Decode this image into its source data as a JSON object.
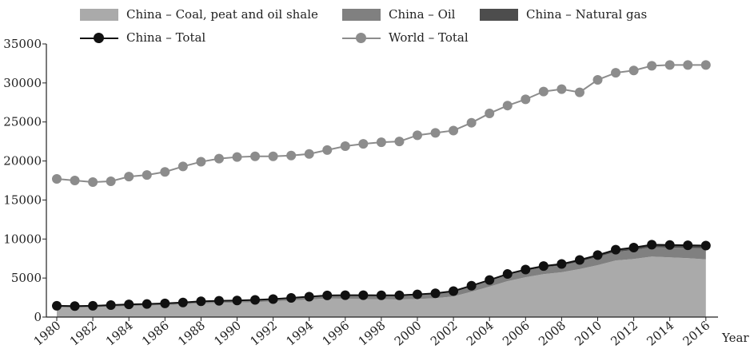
{
  "chart_data": {
    "type": "line+stacked-area",
    "xlabel": "Year",
    "ylabel": "",
    "ylim": [
      0,
      35000
    ],
    "yticks": [
      0,
      5000,
      10000,
      15000,
      20000,
      25000,
      30000,
      35000
    ],
    "xticks": [
      1980,
      1982,
      1984,
      1986,
      1988,
      1990,
      1992,
      1994,
      1996,
      1998,
      2000,
      2002,
      2004,
      2006,
      2008,
      2010,
      2012,
      2014,
      2016
    ],
    "x": [
      1980,
      1981,
      1982,
      1983,
      1984,
      1985,
      1986,
      1987,
      1988,
      1989,
      1990,
      1991,
      1992,
      1993,
      1994,
      1995,
      1996,
      1997,
      1998,
      1999,
      2000,
      2001,
      2002,
      2003,
      2004,
      2005,
      2006,
      2007,
      2008,
      2009,
      2010,
      2011,
      2012,
      2013,
      2014,
      2015,
      2016
    ],
    "legend_position": "top",
    "grid": false,
    "series": [
      {
        "name": "China – Coal, peat and oil shale",
        "kind": "area",
        "color": "#aaaaaa",
        "values": [
          1250,
          1230,
          1260,
          1340,
          1420,
          1470,
          1540,
          1640,
          1770,
          1820,
          1860,
          1920,
          1990,
          2130,
          2250,
          2380,
          2350,
          2320,
          2290,
          2250,
          2310,
          2420,
          2650,
          3250,
          3900,
          4600,
          5100,
          5500,
          5750,
          6150,
          6650,
          7250,
          7450,
          7750,
          7650,
          7550,
          7400
        ]
      },
      {
        "name": "China – Oil",
        "kind": "area",
        "color": "#808080",
        "values": [
          170,
          150,
          150,
          160,
          170,
          170,
          180,
          200,
          220,
          230,
          230,
          250,
          280,
          300,
          330,
          360,
          400,
          430,
          450,
          480,
          540,
          560,
          600,
          680,
          750,
          800,
          850,
          880,
          860,
          950,
          1050,
          1100,
          1150,
          1200,
          1250,
          1300,
          1400
        ]
      },
      {
        "name": "China – Natural gas",
        "kind": "area",
        "color": "#4d4d4d",
        "values": [
          30,
          30,
          30,
          30,
          30,
          30,
          30,
          30,
          30,
          30,
          30,
          30,
          30,
          30,
          30,
          40,
          50,
          50,
          50,
          60,
          60,
          70,
          80,
          90,
          100,
          120,
          140,
          160,
          190,
          220,
          240,
          280,
          300,
          320,
          340,
          350,
          360
        ]
      },
      {
        "name": "China – Total",
        "kind": "line",
        "color": "#111111",
        "values": [
          1450,
          1410,
          1440,
          1530,
          1620,
          1670,
          1750,
          1870,
          2020,
          2080,
          2120,
          2200,
          2300,
          2460,
          2610,
          2780,
          2800,
          2800,
          2790,
          2790,
          2910,
          3050,
          3330,
          4020,
          4750,
          5520,
          6090,
          6540,
          6800,
          7320,
          7940,
          8630,
          8900,
          9270,
          9240,
          9200,
          9160
        ]
      },
      {
        "name": "World – Total",
        "kind": "line",
        "color": "#8c8c8c",
        "values": [
          17700,
          17500,
          17300,
          17400,
          18000,
          18200,
          18600,
          19300,
          19900,
          20300,
          20500,
          20600,
          20600,
          20700,
          20900,
          21400,
          21900,
          22200,
          22400,
          22500,
          23300,
          23600,
          23900,
          24900,
          26100,
          27100,
          27900,
          28900,
          29200,
          28800,
          30400,
          31300,
          31600,
          32200,
          32300,
          32300,
          32300
        ]
      }
    ]
  }
}
